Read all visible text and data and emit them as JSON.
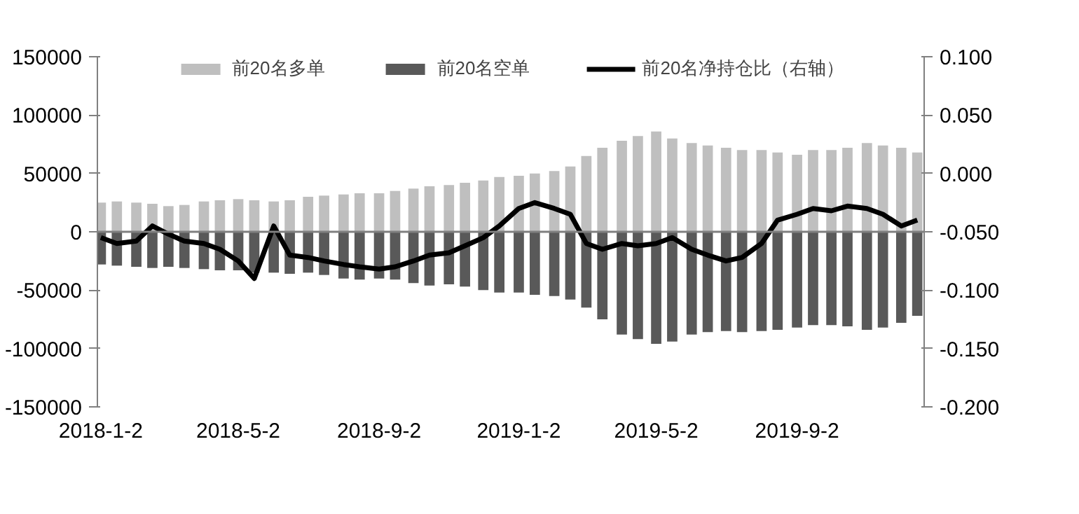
{
  "chart_data": {
    "type": "bar",
    "x": [
      "2018-01-02",
      "2018-01-16",
      "2018-02-02",
      "2018-02-16",
      "2018-03-02",
      "2018-03-16",
      "2018-04-02",
      "2018-04-16",
      "2018-05-02",
      "2018-05-16",
      "2018-06-02",
      "2018-06-16",
      "2018-07-02",
      "2018-07-16",
      "2018-08-02",
      "2018-08-16",
      "2018-09-02",
      "2018-09-16",
      "2018-10-02",
      "2018-10-16",
      "2018-11-02",
      "2018-11-16",
      "2018-12-02",
      "2018-12-16",
      "2019-01-02",
      "2019-01-16",
      "2019-02-02",
      "2019-02-16",
      "2019-03-02",
      "2019-03-16",
      "2019-04-02",
      "2019-04-16",
      "2019-05-02",
      "2019-05-16",
      "2019-06-02",
      "2019-06-16",
      "2019-07-02",
      "2019-07-16",
      "2019-08-02",
      "2019-08-16",
      "2019-09-02",
      "2019-09-16",
      "2019-10-02",
      "2019-10-16",
      "2019-11-02",
      "2019-11-16",
      "2019-12-02",
      "2019-12-16"
    ],
    "series": [
      {
        "name": "前20名多单",
        "color": "#bfbfbf",
        "values": [
          25000,
          26000,
          25000,
          24000,
          22000,
          23000,
          26000,
          27000,
          28000,
          27000,
          26000,
          27000,
          30000,
          31000,
          32000,
          33000,
          33000,
          35000,
          37000,
          39000,
          40000,
          42000,
          44000,
          47000,
          48000,
          50000,
          52000,
          56000,
          65000,
          72000,
          78000,
          82000,
          86000,
          80000,
          76000,
          74000,
          72000,
          70000,
          70000,
          68000,
          66000,
          70000,
          70000,
          72000,
          76000,
          74000,
          72000,
          68000
        ]
      },
      {
        "name": "前20名空单",
        "color": "#595959",
        "values": [
          -28000,
          -29000,
          -30000,
          -31000,
          -30000,
          -31000,
          -32000,
          -33000,
          -33000,
          -35000,
          -35000,
          -36000,
          -35000,
          -37000,
          -40000,
          -41000,
          -40000,
          -41000,
          -44000,
          -46000,
          -45000,
          -47000,
          -50000,
          -52000,
          -52000,
          -54000,
          -55000,
          -58000,
          -65000,
          -75000,
          -88000,
          -92000,
          -96000,
          -94000,
          -88000,
          -86000,
          -85000,
          -86000,
          -85000,
          -84000,
          -82000,
          -80000,
          -80000,
          -81000,
          -84000,
          -82000,
          -78000,
          -72000
        ]
      },
      {
        "name": "前20名净持仓比（右轴）",
        "type": "line",
        "axis": "y2",
        "color": "#000000",
        "values": [
          -0.055,
          -0.06,
          -0.058,
          -0.045,
          -0.052,
          -0.058,
          -0.06,
          -0.065,
          -0.075,
          -0.09,
          -0.045,
          -0.07,
          -0.072,
          -0.075,
          -0.078,
          -0.08,
          -0.082,
          -0.08,
          -0.075,
          -0.07,
          -0.068,
          -0.062,
          -0.055,
          -0.045,
          -0.03,
          -0.025,
          -0.03,
          -0.035,
          -0.06,
          -0.065,
          -0.06,
          -0.062,
          -0.06,
          -0.055,
          -0.065,
          -0.07,
          -0.075,
          -0.072,
          -0.06,
          -0.04,
          -0.035,
          -0.03,
          -0.032,
          -0.028,
          -0.03,
          -0.035,
          -0.045,
          -0.04
        ]
      }
    ],
    "xlim": [
      "2017-12-30",
      "2019-12-22"
    ],
    "xticks": [
      {
        "value": "2018-01-02",
        "label": "2018-1-2"
      },
      {
        "value": "2018-05-02",
        "label": "2018-5-2"
      },
      {
        "value": "2018-09-02",
        "label": "2018-9-2"
      },
      {
        "value": "2019-01-02",
        "label": "2019-1-2"
      },
      {
        "value": "2019-05-02",
        "label": "2019-5-2"
      },
      {
        "value": "2019-09-02",
        "label": "2019-9-2"
      }
    ],
    "ylim": [
      -150000,
      150000
    ],
    "yticks": [
      -150000,
      -100000,
      -50000,
      0,
      50000,
      100000,
      150000
    ],
    "y2lim": [
      -0.2,
      0.1
    ],
    "y2ticks": [
      {
        "value": -0.2,
        "label": "-0.200"
      },
      {
        "value": -0.15,
        "label": "-0.150"
      },
      {
        "value": -0.1,
        "label": "-0.100"
      },
      {
        "value": -0.05,
        "label": "-0.050"
      },
      {
        "value": 0,
        "label": "0.000"
      },
      {
        "value": 0.05,
        "label": "0.050"
      },
      {
        "value": 0.1,
        "label": "0.100"
      }
    ],
    "ref_lines": [
      {
        "axis": "y",
        "value": 0,
        "color": "#808080"
      }
    ],
    "stacked": true,
    "legend": "top",
    "grid": false,
    "line_style": "solid",
    "marker": "none"
  }
}
